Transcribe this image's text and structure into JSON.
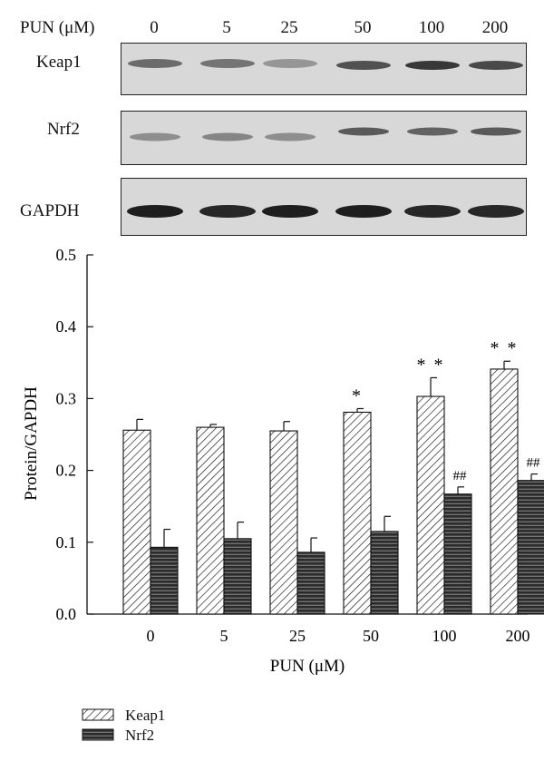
{
  "blot": {
    "header_label": "PUN (μM)",
    "lanes": [
      "0",
      "5",
      "25",
      "50",
      "100",
      "200"
    ],
    "rows": [
      {
        "name": "Keap1",
        "band_intensity": [
          0.55,
          0.5,
          0.3,
          0.7,
          0.85,
          0.75
        ]
      },
      {
        "name": "Nrf2",
        "band_intensity": [
          0.35,
          0.4,
          0.35,
          0.65,
          0.6,
          0.65
        ]
      },
      {
        "name": "GAPDH",
        "band_intensity": [
          1.0,
          0.95,
          1.0,
          1.0,
          0.95,
          0.95
        ]
      }
    ]
  },
  "chart_data": {
    "type": "bar",
    "xlabel": "PUN (μM)",
    "ylabel": "Protein/GAPDH",
    "categories": [
      "0",
      "5",
      "25",
      "50",
      "100",
      "200"
    ],
    "ylim": [
      0,
      0.5
    ],
    "yticks": [
      "0.0",
      "0.1",
      "0.2",
      "0.3",
      "0.4",
      "0.5"
    ],
    "grid": false,
    "legend_position": "bottom-left",
    "series": [
      {
        "name": "Keap1",
        "pattern": "diagonal-hatch",
        "values": [
          0.256,
          0.26,
          0.255,
          0.281,
          0.303,
          0.341
        ],
        "errors": [
          0.015,
          0.004,
          0.013,
          0.005,
          0.026,
          0.011
        ],
        "annotations": [
          "",
          "",
          "",
          "*",
          "**",
          "**"
        ]
      },
      {
        "name": "Nrf2",
        "pattern": "horizontal-stripes",
        "values": [
          0.093,
          0.105,
          0.086,
          0.115,
          0.167,
          0.186
        ],
        "errors": [
          0.025,
          0.023,
          0.02,
          0.021,
          0.01,
          0.009
        ],
        "annotations": [
          "",
          "",
          "",
          "",
          "##",
          "##"
        ]
      }
    ]
  }
}
